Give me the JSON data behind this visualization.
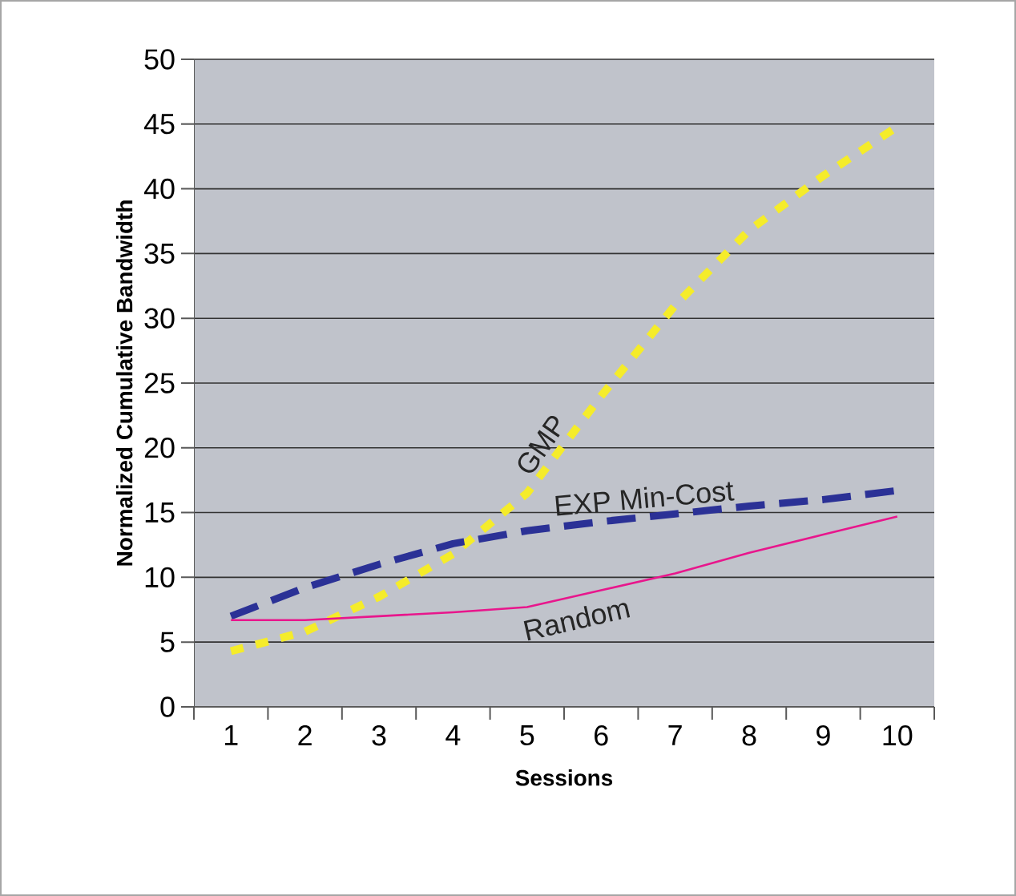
{
  "chart_data": {
    "type": "line",
    "xlabel": "Sessions",
    "ylabel": "Normalized Cumulative Bandwidth",
    "categories": [
      "1",
      "2",
      "3",
      "4",
      "5",
      "6",
      "7",
      "8",
      "9",
      "10"
    ],
    "ylim": [
      0,
      50
    ],
    "yticks": [
      0,
      5,
      10,
      15,
      20,
      25,
      30,
      35,
      40,
      45,
      50
    ],
    "grid": "y",
    "legend": false,
    "series": [
      {
        "name": "GMP",
        "color": "#f5ec2a",
        "line_style": "dotted",
        "values": [
          4.3,
          5.8,
          8.5,
          11.8,
          16.5,
          24.0,
          31.0,
          36.8,
          41.0,
          44.8
        ]
      },
      {
        "name": "EXP Min-Cost",
        "color": "#2b3196",
        "line_style": "dashed",
        "values": [
          7.0,
          9.2,
          11.0,
          12.6,
          13.6,
          14.3,
          14.9,
          15.5,
          16.0,
          16.7
        ]
      },
      {
        "name": "Random",
        "color": "#e8168c",
        "line_style": "solid",
        "values": [
          6.7,
          6.7,
          7.0,
          7.3,
          7.7,
          9.0,
          10.3,
          11.9,
          13.3,
          14.7
        ]
      }
    ]
  }
}
